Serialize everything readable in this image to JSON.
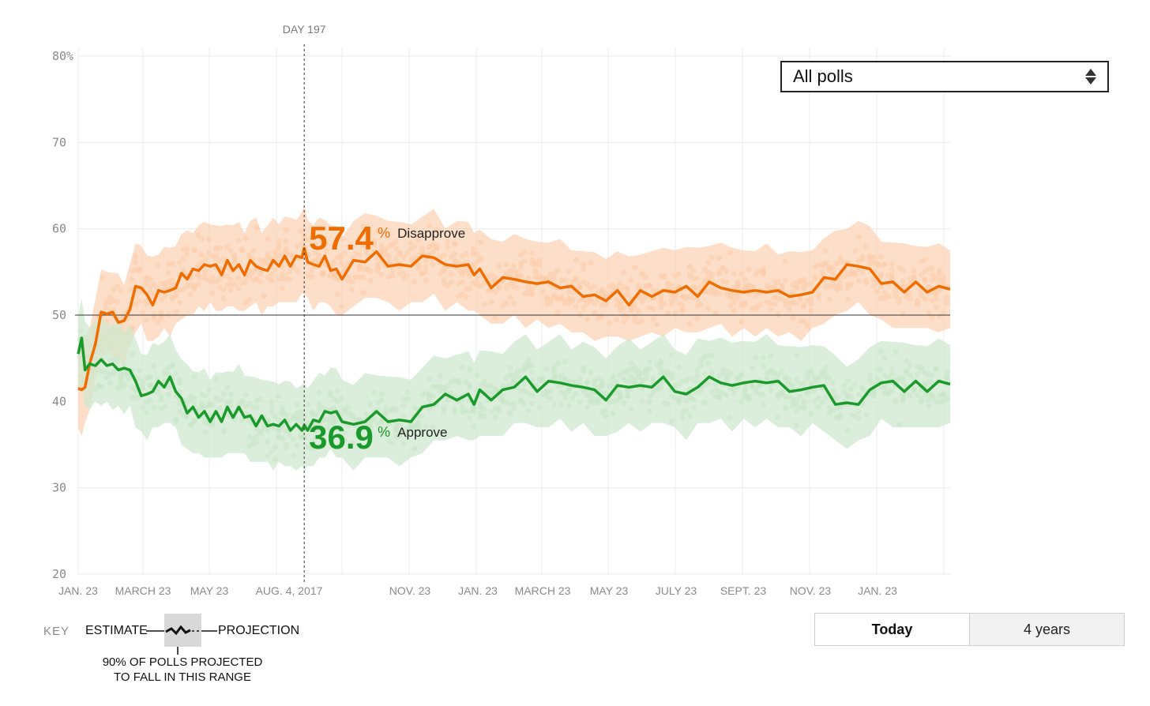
{
  "chart_data": {
    "type": "line",
    "title": "",
    "xlabel": "",
    "ylabel": "",
    "ylim": [
      20,
      80
    ],
    "y_ticks": [
      "80%",
      "70",
      "60",
      "50",
      "40",
      "30",
      "20"
    ],
    "x_ticks": [
      "JAN. 23",
      "MARCH 23",
      "MAY 23",
      "AUG. 4, 2017",
      "NOV. 23",
      "JAN. 23",
      "MARCH 23",
      "MAY 23",
      "JULY 23",
      "SEPT. 23",
      "NOV. 23",
      "JAN. 23"
    ],
    "reference_line": 50,
    "marker": {
      "label": "DAY 197",
      "day": 197
    },
    "x_unit": "days since inauguration",
    "x_range": [
      0,
      760
    ],
    "series": [
      {
        "name": "Disapprove",
        "color": "#ef6c00",
        "band_color": "#fcd3b5",
        "dot_color": "#f9b98d",
        "highlight_value": "57.4",
        "x": [
          0,
          3,
          6,
          10,
          15,
          20,
          25,
          30,
          35,
          40,
          45,
          50,
          55,
          60,
          65,
          70,
          75,
          80,
          85,
          90,
          95,
          100,
          105,
          110,
          115,
          120,
          125,
          130,
          135,
          140,
          145,
          150,
          155,
          160,
          165,
          170,
          175,
          180,
          185,
          190,
          195,
          197,
          200,
          205,
          210,
          215,
          220,
          225,
          230,
          240,
          250,
          260,
          270,
          280,
          290,
          300,
          310,
          320,
          330,
          340,
          345,
          350,
          360,
          370,
          380,
          390,
          400,
          410,
          420,
          430,
          440,
          450,
          460,
          470,
          480,
          490,
          500,
          510,
          520,
          530,
          540,
          550,
          560,
          570,
          580,
          590,
          600,
          610,
          620,
          630,
          640,
          650,
          660,
          670,
          680,
          690,
          700,
          710,
          720,
          730,
          740,
          750,
          760
        ],
        "values": [
          41.5,
          41,
          42,
          44,
          47,
          50,
          50.5,
          50,
          49.5,
          49,
          51,
          53,
          53.5,
          52,
          51.5,
          52.5,
          53,
          52.5,
          53.5,
          54.5,
          54.5,
          55,
          55.5,
          55.5,
          56,
          55.5,
          55,
          56,
          55.5,
          55.5,
          55,
          56,
          56,
          55,
          55.5,
          56,
          56,
          56.5,
          56,
          56.5,
          57,
          57.4,
          56.5,
          55.5,
          56,
          56.5,
          55.5,
          55,
          54.5,
          56,
          56.5,
          57,
          56,
          55.5,
          56,
          56.5,
          57,
          55.5,
          56,
          55.5,
          55,
          55,
          53.5,
          54,
          54.5,
          53.5,
          54,
          53.5,
          53.5,
          53,
          52.5,
          52,
          52,
          52.5,
          51.5,
          52.5,
          52.5,
          52.5,
          53,
          53,
          52.5,
          53.5,
          53.5,
          52.5,
          53,
          52.5,
          53,
          52.5,
          52.5,
          52,
          53,
          54,
          54.5,
          55.5,
          56,
          55,
          54,
          53.5,
          53,
          53.5,
          53,
          53,
          53
        ]
      },
      {
        "name": "Approve",
        "color": "#1a9a2a",
        "band_color": "#cfe8cf",
        "dot_color": "#b4dcb2",
        "highlight_value": "36.9",
        "x": [
          0,
          3,
          6,
          10,
          15,
          20,
          25,
          30,
          35,
          40,
          45,
          50,
          55,
          60,
          65,
          70,
          75,
          80,
          85,
          90,
          95,
          100,
          105,
          110,
          115,
          120,
          125,
          130,
          135,
          140,
          145,
          150,
          155,
          160,
          165,
          170,
          175,
          180,
          185,
          190,
          195,
          197,
          200,
          205,
          210,
          215,
          220,
          225,
          230,
          240,
          250,
          260,
          270,
          280,
          290,
          300,
          310,
          320,
          330,
          340,
          345,
          350,
          360,
          370,
          380,
          390,
          400,
          410,
          420,
          430,
          440,
          450,
          460,
          470,
          480,
          490,
          500,
          510,
          520,
          530,
          540,
          550,
          560,
          570,
          580,
          590,
          600,
          610,
          620,
          630,
          640,
          650,
          660,
          670,
          680,
          690,
          700,
          710,
          720,
          730,
          740,
          750,
          760
        ],
        "values": [
          45.5,
          47,
          44,
          44,
          44.5,
          44.5,
          44.5,
          44,
          44,
          43.5,
          44,
          42,
          41,
          40.5,
          41.5,
          42,
          42,
          42.5,
          41.5,
          40,
          39,
          39,
          38.5,
          38.5,
          38,
          38.5,
          38,
          39,
          38.5,
          39,
          38.5,
          38,
          37.5,
          38,
          37.5,
          37,
          37.5,
          37.5,
          37,
          37,
          37,
          36.9,
          37,
          37.5,
          38,
          38.5,
          39,
          38.5,
          38,
          37,
          38,
          38.5,
          38,
          37.5,
          38,
          39,
          40,
          40.5,
          40.5,
          40.5,
          40,
          41,
          40.5,
          41,
          42,
          42.5,
          41.5,
          42,
          42.5,
          41.5,
          42,
          41,
          40.5,
          41.5,
          42,
          41.5,
          42,
          42.5,
          41.5,
          40.5,
          42,
          42.5,
          42.5,
          41.5,
          42.5,
          42,
          42.5,
          42,
          41.5,
          41,
          42,
          41.5,
          40,
          39.5,
          40,
          41,
          42.5,
          42,
          41.5,
          42,
          41.5,
          42,
          42
        ]
      }
    ],
    "band_halfwidth": 4.5,
    "legend": "inline labels at marker"
  },
  "poll_filter": {
    "selected": "All polls"
  },
  "time_range": {
    "options": [
      "Today",
      "4 years"
    ],
    "active": "Today"
  },
  "key": {
    "title": "KEY",
    "estimate": "ESTIMATE",
    "projection": "PROJECTION",
    "range_note": "90% OF POLLS PROJECTED TO FALL IN THIS RANGE"
  },
  "pct_symbol": "%"
}
